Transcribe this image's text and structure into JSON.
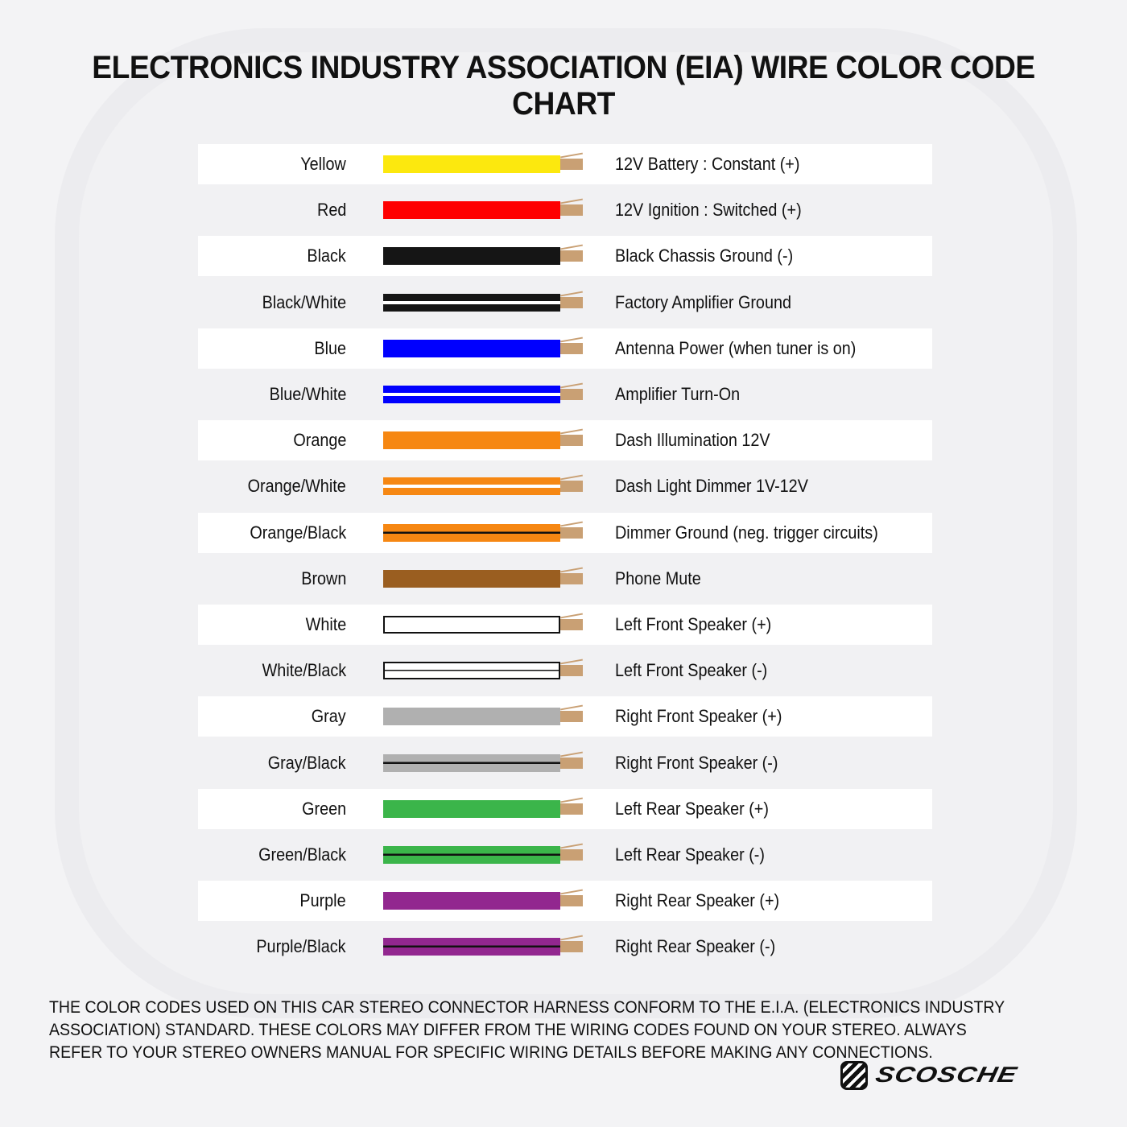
{
  "title": "ELECTRONICS INDUSTRY ASSOCIATION (EIA) WIRE COLOR CODE CHART",
  "rows": [
    {
      "color_name": "Yellow",
      "function": "12V Battery : Constant (+)",
      "base": "#fce80e",
      "stripe": "none"
    },
    {
      "color_name": "Red",
      "function": "12V Ignition : Switched (+)",
      "base": "#fe0000",
      "stripe": "none"
    },
    {
      "color_name": "Black",
      "function": "Black Chassis Ground (-)",
      "base": "#151515",
      "stripe": "none"
    },
    {
      "color_name": "Black/White",
      "function": "Factory Amplifier Ground",
      "base": "#151515",
      "stripe": "white"
    },
    {
      "color_name": "Blue",
      "function": "Antenna Power (when tuner is on)",
      "base": "#0000fe",
      "stripe": "none"
    },
    {
      "color_name": "Blue/White",
      "function": "Amplifier Turn-On",
      "base": "#0000fe",
      "stripe": "white"
    },
    {
      "color_name": "Orange",
      "function": "Dash Illumination 12V",
      "base": "#f68712",
      "stripe": "none"
    },
    {
      "color_name": "Orange/White",
      "function": "Dash Light Dimmer 1V-12V",
      "base": "#f68712",
      "stripe": "white"
    },
    {
      "color_name": "Orange/Black",
      "function": "Dimmer Ground (neg. trigger circuits)",
      "base": "#f68712",
      "stripe": "black"
    },
    {
      "color_name": "Brown",
      "function": "Phone Mute",
      "base": "#9a5e20",
      "stripe": "none"
    },
    {
      "color_name": "White",
      "function": "Left Front Speaker (+)",
      "base": "#ffffff",
      "stripe": "none"
    },
    {
      "color_name": "White/Black",
      "function": "Left Front Speaker (-)",
      "base": "#ffffff",
      "stripe": "black"
    },
    {
      "color_name": "Gray",
      "function": "Right Front Speaker (+)",
      "base": "#b0b0b0",
      "stripe": "none"
    },
    {
      "color_name": "Gray/Black",
      "function": "Right Front Speaker (-)",
      "base": "#b0b0b0",
      "stripe": "black"
    },
    {
      "color_name": "Green",
      "function": "Left Rear Speaker (+)",
      "base": "#3bb54a",
      "stripe": "none"
    },
    {
      "color_name": "Green/Black",
      "function": "Left Rear Speaker (-)",
      "base": "#3bb54a",
      "stripe": "black"
    },
    {
      "color_name": "Purple",
      "function": "Right Rear Speaker (+)",
      "base": "#92278f",
      "stripe": "none"
    },
    {
      "color_name": "Purple/Black",
      "function": "Right Rear Speaker (-)",
      "base": "#92278f",
      "stripe": "black"
    }
  ],
  "copper_color": "#c9a074",
  "footnote": "THE COLOR CODES USED ON THIS CAR STEREO CONNECTOR HARNESS CONFORM TO THE E.I.A. (ELECTRONICS INDUSTRY ASSOCIATION) STANDARD. THESE COLORS MAY DIFFER FROM THE WIRING CODES FOUND ON YOUR STEREO. ALWAYS REFER TO YOUR STEREO OWNERS MANUAL FOR SPECIFIC WIRING DETAILS BEFORE MAKING ANY CONNECTIONS.",
  "logo": {
    "text": "SCOSCHE"
  }
}
